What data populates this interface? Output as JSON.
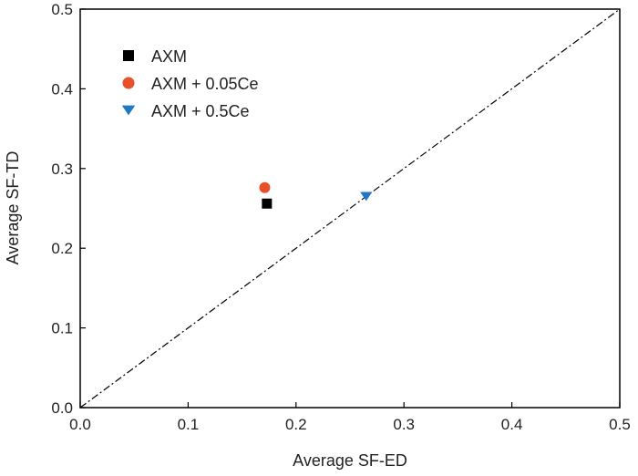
{
  "chart_data": {
    "type": "scatter",
    "xlabel": "Average SF-ED",
    "ylabel": "Average SF-TD",
    "xlim": [
      0,
      0.5
    ],
    "ylim": [
      0,
      0.5
    ],
    "x_ticks": [
      "0.0",
      "0.1",
      "0.2",
      "0.3",
      "0.4",
      "0.5"
    ],
    "y_ticks": [
      "0.0",
      "0.1",
      "0.2",
      "0.3",
      "0.4",
      "0.5"
    ],
    "grid": false,
    "legend_position": "top-left",
    "reference_line": {
      "style": "dash-dot",
      "from": [
        0,
        0
      ],
      "to": [
        0.5,
        0.5
      ],
      "color": "#000000"
    },
    "series": [
      {
        "name": "AXM",
        "marker": "square",
        "color": "#000000",
        "points": [
          {
            "x": 0.173,
            "y": 0.256
          }
        ]
      },
      {
        "name": "AXM + 0.05Ce",
        "marker": "circle",
        "color": "#e8502a",
        "points": [
          {
            "x": 0.171,
            "y": 0.276
          }
        ]
      },
      {
        "name": "AXM + 0.5Ce",
        "marker": "triangle-down",
        "color": "#1f78c1",
        "points": [
          {
            "x": 0.265,
            "y": 0.265
          }
        ]
      }
    ]
  }
}
